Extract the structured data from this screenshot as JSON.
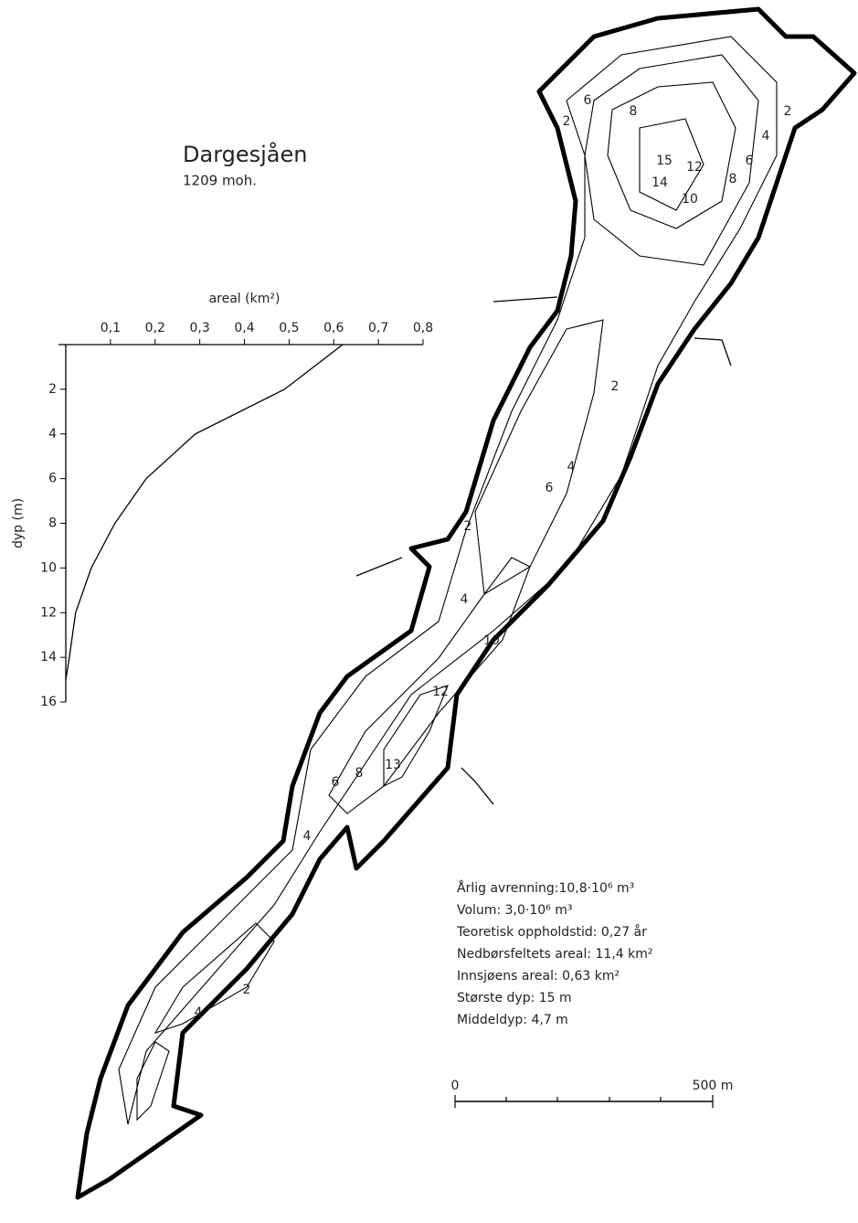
{
  "map": {
    "title": "Dargesjåen",
    "subtitle": "1209 moh.",
    "stats": [
      "Årlig avrenning:10,8·10⁶ m³",
      "Volum: 3,0·10⁶ m³",
      "Teoretisk oppholdstid: 0,27 år",
      "Nedbørsfeltets areal: 11,4 km²",
      "Innsjøens areal: 0,63 km²",
      "Største dyp: 15 m",
      "Middeldyp: 4,7 m"
    ],
    "scale_labels": [
      "0",
      "500 m"
    ],
    "contour_labels": [
      "6",
      "2",
      "8",
      "2",
      "4",
      "15",
      "12",
      "6",
      "14",
      "8",
      "10",
      "2",
      "4",
      "6",
      "2",
      "4",
      "10",
      "12",
      "8",
      "13",
      "6",
      "4",
      "2",
      "4"
    ]
  },
  "chart_data": {
    "type": "line",
    "xlabel": "areal (km²)",
    "ylabel": "dyp (m)",
    "x": [
      0.62,
      0.49,
      0.29,
      0.18,
      0.11,
      0.057,
      0.022,
      0.008,
      0
    ],
    "values": [
      0,
      2,
      4,
      6,
      8,
      10,
      12,
      14,
      15
    ],
    "color": "#000000",
    "xlim": [
      0,
      0.8
    ],
    "ylim": [
      0,
      16
    ],
    "y_inverted": true,
    "xticks": [
      {
        "value": 0.1,
        "label": "0,1"
      },
      {
        "value": 0.2,
        "label": "0,2"
      },
      {
        "value": 0.3,
        "label": "0,3"
      },
      {
        "value": 0.4,
        "label": "0,4"
      },
      {
        "value": 0.5,
        "label": "0,5"
      },
      {
        "value": 0.6,
        "label": "0,6"
      },
      {
        "value": 0.7,
        "label": "0,7"
      },
      {
        "value": 0.8,
        "label": "0,8"
      }
    ],
    "yticks": [
      2,
      4,
      6,
      8,
      10,
      12,
      14,
      16
    ]
  }
}
